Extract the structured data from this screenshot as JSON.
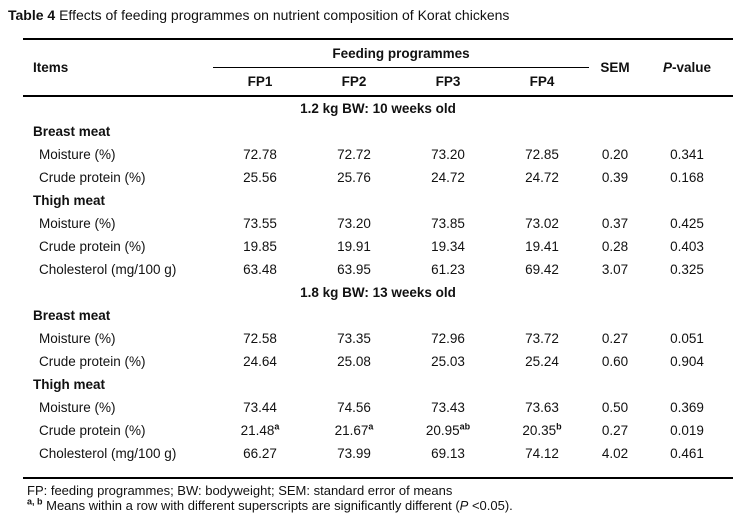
{
  "caption": {
    "label": "Table 4",
    "text": " Effects of feeding programmes on nutrient composition of Korat chickens"
  },
  "colors": {
    "background": "#ffffff",
    "text": "#111111",
    "rule": "#000000"
  },
  "table": {
    "items_header": "Items",
    "group_header": "Feeding programmes",
    "columns": [
      "FP1",
      "FP2",
      "FP3",
      "FP4"
    ],
    "sem_header": "SEM",
    "p_header_italic": "P",
    "p_header_rest": "-value",
    "sections": [
      {
        "section_title": "1.2 kg BW: 10 weeks old",
        "groups": [
          {
            "name": "Breast meat",
            "rows": [
              {
                "label": "Moisture (%)",
                "values": [
                  "72.78",
                  "72.72",
                  "73.20",
                  "72.85"
                ],
                "sem": "0.20",
                "p": "0.341"
              },
              {
                "label": "Crude protein (%)",
                "values": [
                  "25.56",
                  "25.76",
                  "24.72",
                  "24.72"
                ],
                "sem": "0.39",
                "p": "0.168"
              }
            ]
          },
          {
            "name": "Thigh meat",
            "rows": [
              {
                "label": "Moisture (%)",
                "values": [
                  "73.55",
                  "73.20",
                  "73.85",
                  "73.02"
                ],
                "sem": "0.37",
                "p": "0.425"
              },
              {
                "label": "Crude protein (%)",
                "values": [
                  "19.85",
                  "19.91",
                  "19.34",
                  "19.41"
                ],
                "sem": "0.28",
                "p": "0.403"
              },
              {
                "label": "Cholesterol (mg/100 g)",
                "values": [
                  "63.48",
                  "63.95",
                  "61.23",
                  "69.42"
                ],
                "sem": "3.07",
                "p": "0.325"
              }
            ]
          }
        ]
      },
      {
        "section_title": "1.8 kg BW: 13 weeks old",
        "groups": [
          {
            "name": "Breast meat",
            "rows": [
              {
                "label": "Moisture (%)",
                "values": [
                  "72.58",
                  "73.35",
                  "72.96",
                  "73.72"
                ],
                "sem": "0.27",
                "p": "0.051"
              },
              {
                "label": "Crude protein (%)",
                "values": [
                  "24.64",
                  "25.08",
                  "25.03",
                  "25.24"
                ],
                "sem": "0.60",
                "p": "0.904"
              }
            ]
          },
          {
            "name": "Thigh meat",
            "rows": [
              {
                "label": "Moisture (%)",
                "values": [
                  "73.44",
                  "74.56",
                  "73.43",
                  "73.63"
                ],
                "sem": "0.50",
                "p": "0.369"
              },
              {
                "label": "Crude protein (%)",
                "values": [
                  {
                    "text": "21.48",
                    "sup": "a"
                  },
                  {
                    "text": "21.67",
                    "sup": "a"
                  },
                  {
                    "text": "20.95",
                    "sup": "ab"
                  },
                  {
                    "text": "20.35",
                    "sup": "b"
                  }
                ],
                "sem": "0.27",
                "p": "0.019"
              },
              {
                "label": "Cholesterol (mg/100 g)",
                "values": [
                  "66.27",
                  "73.99",
                  "69.13",
                  "74.12"
                ],
                "sem": "4.02",
                "p": "0.461"
              }
            ]
          }
        ]
      }
    ]
  },
  "footnotes": {
    "abbreviations": "FP: feeding programmes; BW: bodyweight; SEM: standard error of means",
    "significance": {
      "sup": "a, b",
      "before_italic": " Means within a row with different superscripts are significantly different (",
      "italic": "P",
      "after_italic": " <0.05)."
    }
  }
}
